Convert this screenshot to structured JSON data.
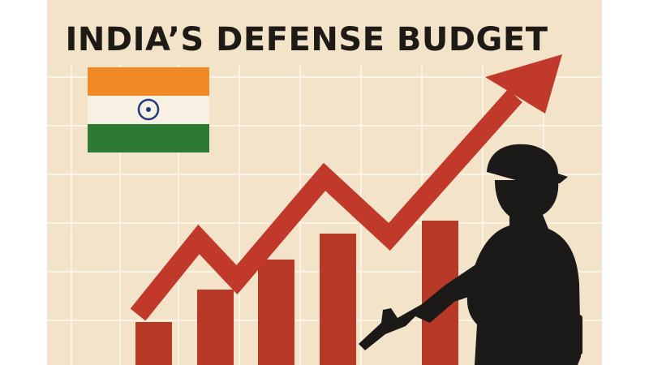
{
  "header": {
    "title": "INDIA’S DEFENSE BUDGET"
  }
}
